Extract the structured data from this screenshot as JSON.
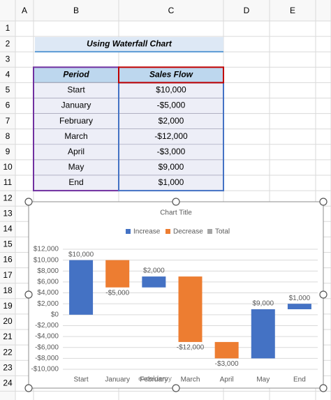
{
  "sheet": {
    "columns": [
      "A",
      "B",
      "C",
      "D",
      "E"
    ],
    "rows": [
      1,
      2,
      3,
      4,
      5,
      6,
      7,
      8,
      9,
      10,
      11,
      12,
      13,
      14,
      15,
      16,
      17,
      18,
      19,
      20,
      21,
      22,
      23,
      24
    ]
  },
  "title_cell": "Using Waterfall Chart",
  "table": {
    "header": [
      "Period",
      "Sales Flow"
    ],
    "rows": [
      [
        "Start",
        "$10,000"
      ],
      [
        "January",
        "-$5,000"
      ],
      [
        "February",
        "$2,000"
      ],
      [
        "March",
        "-$12,000"
      ],
      [
        "April",
        "-$3,000"
      ],
      [
        "May",
        "$9,000"
      ],
      [
        "End",
        "$1,000"
      ]
    ]
  },
  "chart_data": {
    "type": "waterfall",
    "title": "Chart Title",
    "categories": [
      "Start",
      "January",
      "February",
      "March",
      "April",
      "May",
      "End"
    ],
    "values": [
      10000,
      -5000,
      2000,
      -12000,
      -3000,
      9000,
      1000
    ],
    "value_labels": [
      "$10,000",
      "-$5,000",
      "$2,000",
      "-$12,000",
      "-$3,000",
      "$9,000",
      "$1,000"
    ],
    "legend": [
      {
        "name": "Increase",
        "color": "#4472c4"
      },
      {
        "name": "Decrease",
        "color": "#ed7d31"
      },
      {
        "name": "Total",
        "color": "#a5a5a5"
      }
    ],
    "ylim": [
      -10000,
      12000
    ],
    "yticks": [
      {
        "value": 12000,
        "label": "$12,000"
      },
      {
        "value": 10000,
        "label": "$10,000"
      },
      {
        "value": 8000,
        "label": "$8,000"
      },
      {
        "value": 6000,
        "label": "$6,000"
      },
      {
        "value": 4000,
        "label": "$4,000"
      },
      {
        "value": 2000,
        "label": "$2,000"
      },
      {
        "value": 0,
        "label": "$0"
      },
      {
        "value": -2000,
        "label": "-$2,000"
      },
      {
        "value": -4000,
        "label": "-$4,000"
      },
      {
        "value": -6000,
        "label": "-$6,000"
      },
      {
        "value": -8000,
        "label": "-$8,000"
      },
      {
        "value": -10000,
        "label": "-$10,000"
      }
    ],
    "grid": true
  },
  "watermark": "exceldemy"
}
